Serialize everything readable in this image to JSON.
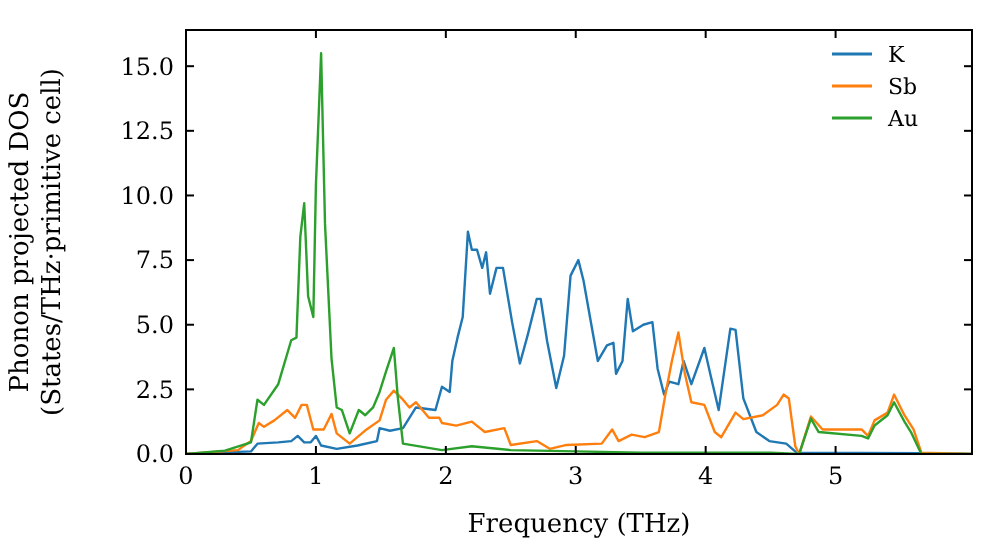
{
  "chart_data": {
    "type": "line",
    "xlabel": "Frequency (THz)",
    "ylabel": "Phonon projected DOS\n(States/THz·primitive cell)",
    "xlim": [
      0,
      6.05
    ],
    "ylim": [
      0,
      16.4
    ],
    "xticks": [
      0,
      1,
      2,
      3,
      4,
      5
    ],
    "yticks": [
      {
        "value": 0,
        "label": "0.0"
      },
      {
        "value": 2.5,
        "label": "2.5"
      },
      {
        "value": 5,
        "label": "5.0"
      },
      {
        "value": 7.5,
        "label": "7.5"
      },
      {
        "value": 10,
        "label": "10.0"
      },
      {
        "value": 12.5,
        "label": "12.5"
      },
      {
        "value": 15,
        "label": "15.0"
      }
    ],
    "legend": "top right",
    "series": [
      {
        "name": "K",
        "color": "#1f77b4",
        "x": [
          0,
          0.5,
          0.55,
          0.71,
          0.81,
          0.86,
          0.91,
          0.96,
          1.0,
          1.04,
          1.16,
          1.32,
          1.47,
          1.49,
          1.57,
          1.67,
          1.77,
          1.92,
          1.97,
          2.03,
          2.05,
          2.09,
          2.13,
          2.17,
          2.2,
          2.24,
          2.28,
          2.31,
          2.34,
          2.39,
          2.44,
          2.51,
          2.57,
          2.63,
          2.7,
          2.73,
          2.78,
          2.85,
          2.91,
          2.96,
          3.02,
          3.06,
          3.12,
          3.17,
          3.24,
          3.29,
          3.31,
          3.36,
          3.4,
          3.44,
          3.52,
          3.59,
          3.63,
          3.68,
          3.72,
          3.79,
          3.83,
          3.89,
          3.99,
          4.04,
          4.1,
          4.19,
          4.23,
          4.29,
          4.39,
          4.49,
          4.62,
          4.7,
          5.66,
          6.05
        ],
        "values": [
          0,
          0.1,
          0.4,
          0.45,
          0.5,
          0.7,
          0.45,
          0.45,
          0.7,
          0.33,
          0.2,
          0.33,
          0.5,
          1.0,
          0.9,
          1.0,
          1.8,
          1.7,
          2.6,
          2.4,
          3.6,
          4.5,
          5.3,
          8.6,
          7.9,
          7.9,
          7.2,
          7.8,
          6.2,
          7.2,
          7.2,
          5.1,
          3.5,
          4.6,
          6.0,
          6.0,
          4.35,
          2.55,
          3.8,
          6.9,
          7.5,
          6.7,
          5.0,
          3.6,
          4.2,
          4.3,
          3.1,
          3.6,
          6.0,
          4.75,
          5.0,
          5.1,
          3.3,
          2.3,
          2.8,
          2.7,
          3.6,
          2.7,
          4.1,
          3.0,
          1.7,
          4.85,
          4.8,
          2.15,
          0.85,
          0.5,
          0.4,
          0.05,
          0.03,
          0
        ]
      },
      {
        "name": "Sb",
        "color": "#ff7f0e",
        "x": [
          0,
          0.4,
          0.5,
          0.56,
          0.6,
          0.68,
          0.78,
          0.84,
          0.89,
          0.93,
          0.98,
          1.06,
          1.12,
          1.16,
          1.26,
          1.39,
          1.49,
          1.54,
          1.6,
          1.67,
          1.72,
          1.77,
          1.87,
          1.95,
          1.97,
          2.08,
          2.2,
          2.3,
          2.45,
          2.5,
          2.7,
          2.8,
          2.93,
          3.2,
          3.28,
          3.33,
          3.43,
          3.53,
          3.64,
          3.69,
          3.74,
          3.79,
          3.84,
          3.89,
          3.99,
          4.07,
          4.12,
          4.23,
          4.29,
          4.44,
          4.55,
          4.6,
          4.64,
          4.69,
          4.72,
          4.81,
          4.9,
          5.2,
          5.25,
          5.3,
          5.4,
          5.45,
          5.53,
          5.6,
          5.66,
          6.05
        ],
        "values": [
          0,
          0.15,
          0.5,
          1.2,
          1.05,
          1.3,
          1.7,
          1.4,
          1.9,
          1.9,
          0.95,
          0.95,
          1.55,
          0.8,
          0.4,
          0.95,
          1.3,
          2.1,
          2.45,
          2.1,
          1.8,
          2.0,
          1.4,
          1.4,
          1.2,
          1.1,
          1.25,
          0.85,
          1.0,
          0.35,
          0.5,
          0.2,
          0.35,
          0.4,
          0.95,
          0.5,
          0.75,
          0.65,
          0.85,
          2.3,
          3.6,
          4.7,
          3.1,
          2.0,
          1.9,
          0.85,
          0.65,
          1.6,
          1.35,
          1.5,
          1.9,
          2.3,
          2.15,
          0.3,
          0,
          1.45,
          0.95,
          0.95,
          0.7,
          1.3,
          1.6,
          2.3,
          1.5,
          0.95,
          0.05,
          0
        ]
      },
      {
        "name": "Au",
        "color": "#2ca02c",
        "x": [
          0,
          0.3,
          0.5,
          0.55,
          0.6,
          0.71,
          0.81,
          0.85,
          0.88,
          0.91,
          0.94,
          0.98,
          1.0,
          1.04,
          1.07,
          1.12,
          1.16,
          1.2,
          1.26,
          1.33,
          1.38,
          1.44,
          1.49,
          1.54,
          1.6,
          1.63,
          1.67,
          1.97,
          2.2,
          2.5,
          3.0,
          3.5,
          4.0,
          4.5,
          4.72,
          4.81,
          4.87,
          5.2,
          5.25,
          5.3,
          5.4,
          5.45,
          5.53,
          5.58,
          5.66,
          6.05
        ],
        "values": [
          0,
          0.13,
          0.45,
          2.1,
          1.9,
          2.7,
          4.4,
          4.5,
          8.4,
          9.7,
          6.1,
          5.3,
          10.4,
          15.5,
          8.9,
          3.7,
          1.8,
          1.7,
          0.8,
          1.7,
          1.5,
          1.8,
          2.4,
          3.2,
          4.1,
          2.2,
          0.4,
          0.15,
          0.3,
          0.15,
          0.1,
          0.05,
          0.05,
          0.05,
          0,
          1.37,
          0.85,
          0.7,
          0.6,
          1.1,
          1.5,
          2.0,
          1.25,
          0.85,
          0,
          0
        ]
      }
    ]
  }
}
